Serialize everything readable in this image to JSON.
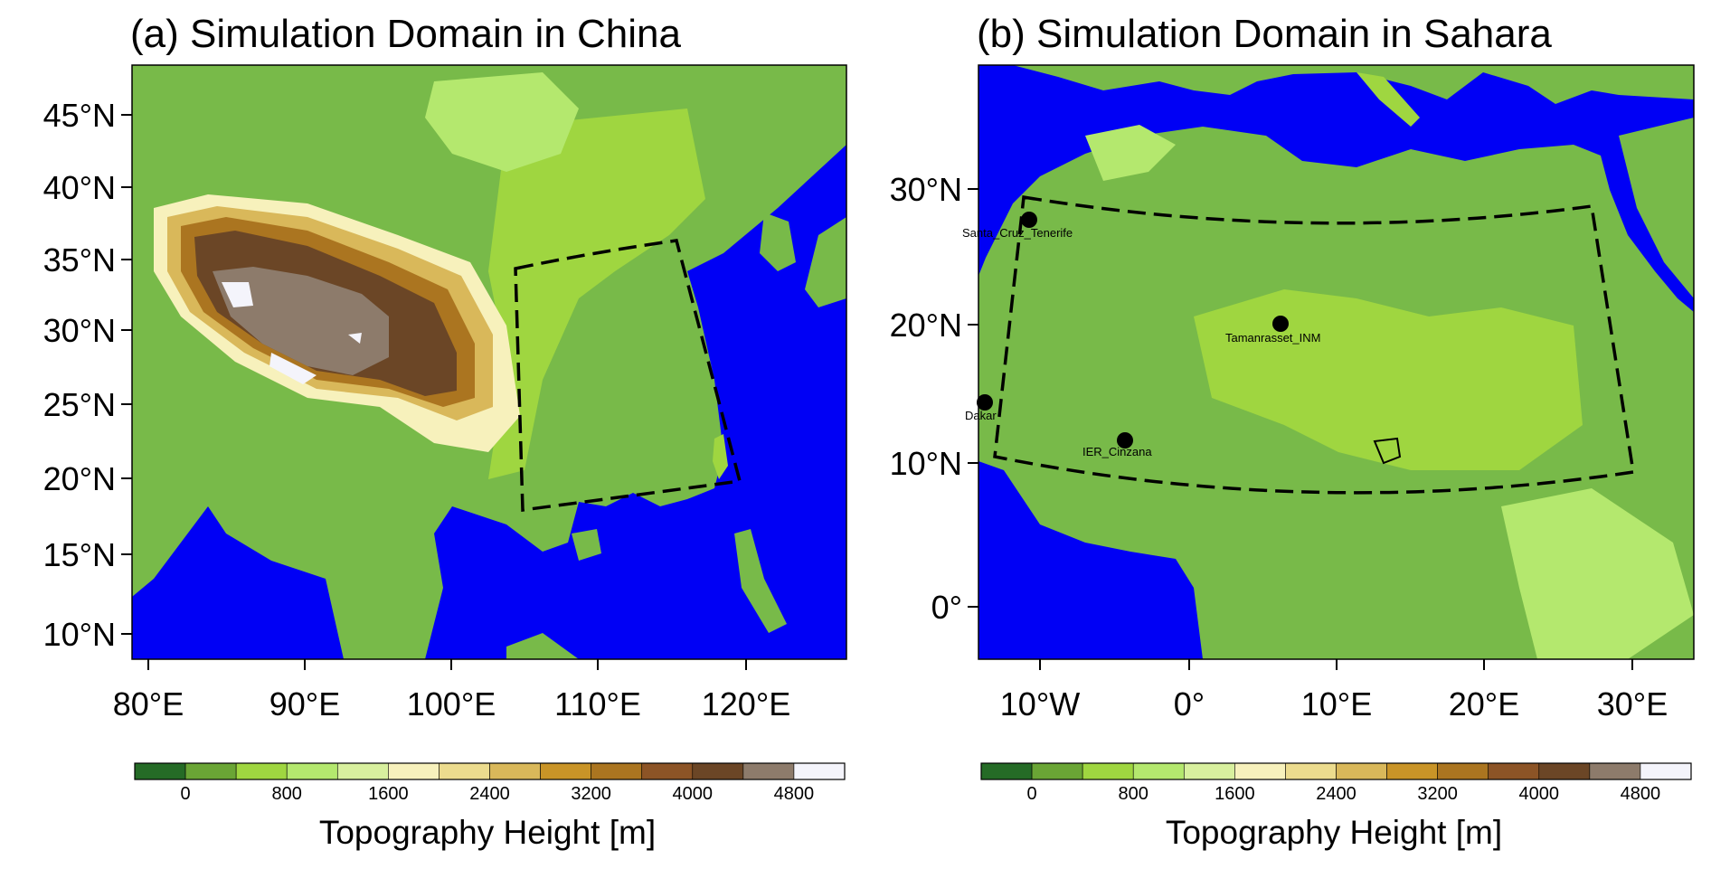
{
  "colors": {
    "ocean": "#0000f5",
    "colorbar": [
      "#256b26",
      "#6aa535",
      "#9fd640",
      "#b4e86e",
      "#d8f09e",
      "#f7f1bc",
      "#ecdc8e",
      "#d9b85a",
      "#c99427",
      "#ab7520",
      "#8c5426",
      "#6b4626",
      "#8d7b6b",
      "#f4f4fb"
    ],
    "terrain_base": "#78ba49",
    "box_line": "#000000"
  },
  "panels": [
    {
      "id": "a",
      "title": "(a) Simulation Domain in China",
      "lat_ticks": [
        "45°N",
        "40°N",
        "35°N",
        "30°N",
        "25°N",
        "20°N",
        "15°N",
        "10°N"
      ],
      "lon_ticks": [
        "80°E",
        "90°E",
        "100°E",
        "110°E",
        "120°E"
      ],
      "colorbar_labels": [
        "0",
        "800",
        "1600",
        "2400",
        "3200",
        "4000",
        "4800"
      ],
      "colorbar_title": "Topography Height [m]",
      "stations": []
    },
    {
      "id": "b",
      "title": "(b) Simulation Domain in Sahara",
      "lat_ticks": [
        "30°N",
        "20°N",
        "10°N",
        "0°"
      ],
      "lon_ticks": [
        "10°W",
        "0°",
        "10°E",
        "20°E",
        "30°E"
      ],
      "colorbar_labels": [
        "0",
        "800",
        "1600",
        "2400",
        "3200",
        "4000",
        "4800"
      ],
      "colorbar_title": "Topography Height [m]",
      "stations": [
        {
          "name": "Santa_Cruz_Tenerife"
        },
        {
          "name": "Tamanrasset_INM"
        },
        {
          "name": "Dakar"
        },
        {
          "name": "IER_Cinzana"
        }
      ]
    }
  ]
}
